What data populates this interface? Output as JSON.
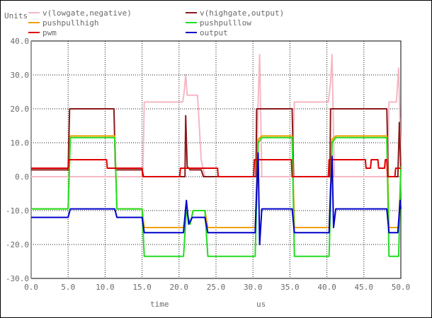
{
  "chart_data": {
    "type": "line",
    "title": "",
    "ylabel": "Units",
    "xlabel_left": "time",
    "xlabel_right": "us",
    "xlim": [
      0,
      50
    ],
    "ylim": [
      -30,
      40
    ],
    "xticks": [
      "0.0",
      "5.0",
      "10.0",
      "15.0",
      "20.0",
      "25.0",
      "30.0",
      "35.0",
      "40.0",
      "45.0",
      "50.0"
    ],
    "yticks": [
      "40.0",
      "30.0",
      "20.0",
      "10.0",
      "0.0",
      "-10.0",
      "-20.0",
      "-30.0"
    ],
    "grid": true,
    "legend_placement": "top",
    "series": [
      {
        "name": "v(lowgate,negative)",
        "color": "#f4b8c4",
        "points": [
          [
            0,
            0
          ],
          [
            15.1,
            0
          ],
          [
            15.3,
            22
          ],
          [
            20.5,
            22
          ],
          [
            20.7,
            25
          ],
          [
            20.9,
            30
          ],
          [
            21.1,
            24
          ],
          [
            22.5,
            24
          ],
          [
            23,
            5
          ],
          [
            23.5,
            0
          ],
          [
            30.5,
            0
          ],
          [
            30.7,
            22
          ],
          [
            30.9,
            36
          ],
          [
            31.2,
            0
          ],
          [
            35.3,
            0
          ],
          [
            35.6,
            22
          ],
          [
            40.2,
            22
          ],
          [
            40.5,
            28
          ],
          [
            40.7,
            36
          ],
          [
            41,
            0
          ],
          [
            48.2,
            0
          ],
          [
            48.4,
            22
          ],
          [
            49.4,
            22
          ],
          [
            49.7,
            32
          ],
          [
            50,
            5
          ]
        ]
      },
      {
        "name": "v(highgate,output)",
        "color": "#8b1a1a",
        "points": [
          [
            0,
            2
          ],
          [
            5,
            2
          ],
          [
            5.2,
            20
          ],
          [
            11.2,
            20
          ],
          [
            11.4,
            2
          ],
          [
            15,
            2
          ],
          [
            15.2,
            0
          ],
          [
            20.8,
            0
          ],
          [
            20.9,
            18
          ],
          [
            21.1,
            3
          ],
          [
            21.5,
            2
          ],
          [
            23,
            2
          ],
          [
            23.3,
            0
          ],
          [
            30.4,
            0
          ],
          [
            30.5,
            20
          ],
          [
            35.3,
            20
          ],
          [
            35.5,
            0
          ],
          [
            40.4,
            0
          ],
          [
            40.5,
            20
          ],
          [
            48.1,
            20
          ],
          [
            48.3,
            0
          ],
          [
            49.6,
            0
          ],
          [
            49.8,
            16
          ],
          [
            50,
            2
          ]
        ]
      },
      {
        "name": "pushpullhigh",
        "color": "#f0a000",
        "points": [
          [
            0,
            -9.5
          ],
          [
            5,
            -9.5
          ],
          [
            5.3,
            12
          ],
          [
            11.3,
            12
          ],
          [
            11.6,
            -9.5
          ],
          [
            15,
            -9.5
          ],
          [
            15.3,
            -15
          ],
          [
            20.6,
            -15
          ],
          [
            21,
            -10
          ],
          [
            21.5,
            -14
          ],
          [
            21.9,
            -10
          ],
          [
            23.5,
            -10
          ],
          [
            23.9,
            -15
          ],
          [
            30.3,
            -15
          ],
          [
            30.7,
            11
          ],
          [
            31.2,
            12
          ],
          [
            35.3,
            12
          ],
          [
            35.6,
            -15
          ],
          [
            40.3,
            -15
          ],
          [
            40.7,
            11
          ],
          [
            41.2,
            12
          ],
          [
            48.1,
            12
          ],
          [
            48.4,
            -15
          ],
          [
            49.7,
            -15
          ],
          [
            50,
            2
          ]
        ]
      },
      {
        "name": "pushpulllow",
        "color": "#22dd22",
        "points": [
          [
            0,
            -9.5
          ],
          [
            5,
            -9.5
          ],
          [
            5.3,
            11.5
          ],
          [
            11.3,
            11.5
          ],
          [
            11.6,
            -9.5
          ],
          [
            15,
            -9.5
          ],
          [
            15.3,
            -23.5
          ],
          [
            20.6,
            -23.5
          ],
          [
            21,
            -10
          ],
          [
            21.5,
            -14
          ],
          [
            21.9,
            -10
          ],
          [
            23.5,
            -10
          ],
          [
            23.9,
            -23.5
          ],
          [
            30.3,
            -23.5
          ],
          [
            30.7,
            10
          ],
          [
            31.2,
            11.5
          ],
          [
            35.3,
            11.5
          ],
          [
            35.6,
            -23.5
          ],
          [
            40.3,
            -23.5
          ],
          [
            40.7,
            10
          ],
          [
            41.2,
            11.5
          ],
          [
            48.1,
            11.5
          ],
          [
            48.4,
            -23.5
          ],
          [
            49.7,
            -23.5
          ],
          [
            50,
            3
          ]
        ]
      },
      {
        "name": "pwm",
        "color": "#e00000",
        "points": [
          [
            0,
            2.5
          ],
          [
            5,
            2.5
          ],
          [
            5.1,
            5
          ],
          [
            10.2,
            5
          ],
          [
            10.3,
            2.5
          ],
          [
            15,
            2.5
          ],
          [
            15.1,
            0
          ],
          [
            20.1,
            0
          ],
          [
            20.2,
            2.5
          ],
          [
            25.2,
            2.5
          ],
          [
            25.3,
            0
          ],
          [
            30.1,
            0
          ],
          [
            30.2,
            5
          ],
          [
            35.2,
            5
          ],
          [
            35.3,
            0
          ],
          [
            40.2,
            0
          ],
          [
            40.3,
            5
          ],
          [
            45.2,
            5
          ],
          [
            45.3,
            2.5
          ],
          [
            45.9,
            2.5
          ],
          [
            46,
            5
          ],
          [
            46.9,
            5
          ],
          [
            47,
            2.5
          ],
          [
            47.8,
            2.5
          ],
          [
            47.9,
            5
          ],
          [
            48.1,
            5
          ],
          [
            48.2,
            0
          ],
          [
            49.2,
            0
          ],
          [
            49.3,
            2.5
          ],
          [
            50,
            2.5
          ]
        ]
      },
      {
        "name": "output",
        "color": "#0000cc",
        "points": [
          [
            0,
            -12
          ],
          [
            5,
            -12
          ],
          [
            5.3,
            -9.5
          ],
          [
            11.3,
            -9.5
          ],
          [
            11.6,
            -12
          ],
          [
            15,
            -12
          ],
          [
            15.3,
            -16.5
          ],
          [
            20.6,
            -16.5
          ],
          [
            21,
            -7
          ],
          [
            21.3,
            -14
          ],
          [
            21.8,
            -12
          ],
          [
            23.5,
            -12
          ],
          [
            23.9,
            -16.5
          ],
          [
            30.3,
            -16.5
          ],
          [
            30.5,
            -4
          ],
          [
            30.7,
            7
          ],
          [
            30.9,
            -20
          ],
          [
            31.2,
            -9.5
          ],
          [
            35.3,
            -9.5
          ],
          [
            35.6,
            -16.5
          ],
          [
            40.3,
            -16.5
          ],
          [
            40.5,
            -4
          ],
          [
            40.7,
            6
          ],
          [
            40.9,
            -15
          ],
          [
            41.2,
            -9.5
          ],
          [
            48.1,
            -9.5
          ],
          [
            48.4,
            -16.5
          ],
          [
            49.6,
            -16.5
          ],
          [
            49.9,
            -7
          ],
          [
            50,
            -9.5
          ]
        ]
      }
    ]
  }
}
